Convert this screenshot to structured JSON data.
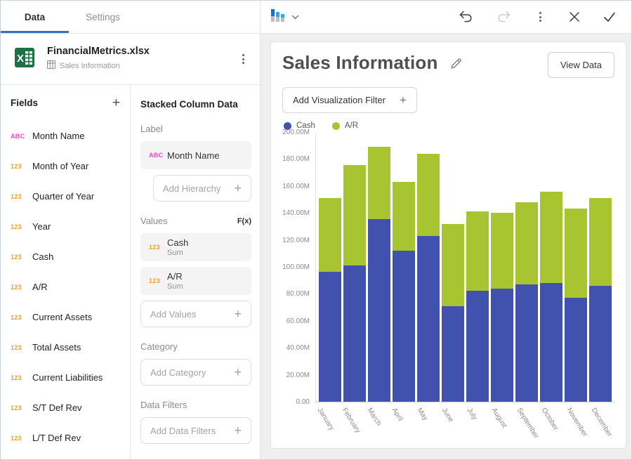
{
  "tabs": {
    "data": "Data",
    "settings": "Settings"
  },
  "file": {
    "name": "FinancialMetrics.xlsx",
    "sheet": "Sales Information"
  },
  "fields": {
    "title": "Fields",
    "items": [
      {
        "icon": "ABC",
        "label": "Month Name"
      },
      {
        "icon": "123",
        "label": "Month of Year"
      },
      {
        "icon": "123",
        "label": "Quarter of Year"
      },
      {
        "icon": "123",
        "label": "Year"
      },
      {
        "icon": "123",
        "label": "Cash"
      },
      {
        "icon": "123",
        "label": "A/R"
      },
      {
        "icon": "123",
        "label": "Current Assets"
      },
      {
        "icon": "123",
        "label": "Total Assets"
      },
      {
        "icon": "123",
        "label": "Current Liabilities"
      },
      {
        "icon": "123",
        "label": "S/T Def Rev"
      },
      {
        "icon": "123",
        "label": "L/T Def Rev"
      }
    ]
  },
  "binding": {
    "title": "Stacked Column Data",
    "label_section": {
      "title": "Label",
      "chip": {
        "icon": "ABC",
        "label": "Month Name"
      },
      "add_placeholder": "Add Hierarchy"
    },
    "values_section": {
      "title": "Values",
      "fx": "F(x)",
      "chips": [
        {
          "icon": "123",
          "label": "Cash",
          "agg": "Sum"
        },
        {
          "icon": "123",
          "label": "A/R",
          "agg": "Sum"
        }
      ],
      "add_placeholder": "Add Values"
    },
    "category_section": {
      "title": "Category",
      "add_placeholder": "Add Category"
    },
    "filters_section": {
      "title": "Data Filters",
      "add_placeholder": "Add Data Filters"
    }
  },
  "card": {
    "title": "Sales Information",
    "view_data_label": "View Data",
    "filter_button_label": "Add Visualization Filter"
  },
  "icons": {
    "plus": "+"
  },
  "colors": {
    "tab_underline": "#2e74c0",
    "bar_cash": "#4052ad",
    "bar_ar": "#a8c431",
    "field_icon_text": "#f542cd",
    "field_icon_number": "#f0a01e",
    "excel_green": "#1e7145"
  },
  "chart_data": {
    "type": "bar",
    "stacked": true,
    "categories": [
      "January",
      "February",
      "March",
      "April",
      "May",
      "June",
      "July",
      "August",
      "September",
      "October",
      "November",
      "December"
    ],
    "series": [
      {
        "name": "Cash",
        "color": "#4052ad",
        "unit": "M",
        "values": [
          96.5,
          101,
          135.5,
          112,
          123,
          71,
          82.5,
          84,
          87,
          88,
          77,
          86
        ]
      },
      {
        "name": "A/R",
        "color": "#a8c431",
        "unit": "M",
        "values": [
          54.5,
          74.5,
          53.5,
          51,
          61,
          61,
          58.5,
          56,
          61,
          68,
          66,
          65
        ]
      }
    ],
    "title": "Sales Information",
    "xlabel": "",
    "ylabel": "",
    "ylim": [
      0,
      200
    ],
    "ytick_labels": [
      "200.00M",
      "180.00M",
      "160.00M",
      "140.00M",
      "120.00M",
      "100.00M",
      "80.00M",
      "60.00M",
      "40.00M",
      "20.00M",
      "0.00"
    ],
    "grid": false,
    "legend_position": "top-left"
  }
}
